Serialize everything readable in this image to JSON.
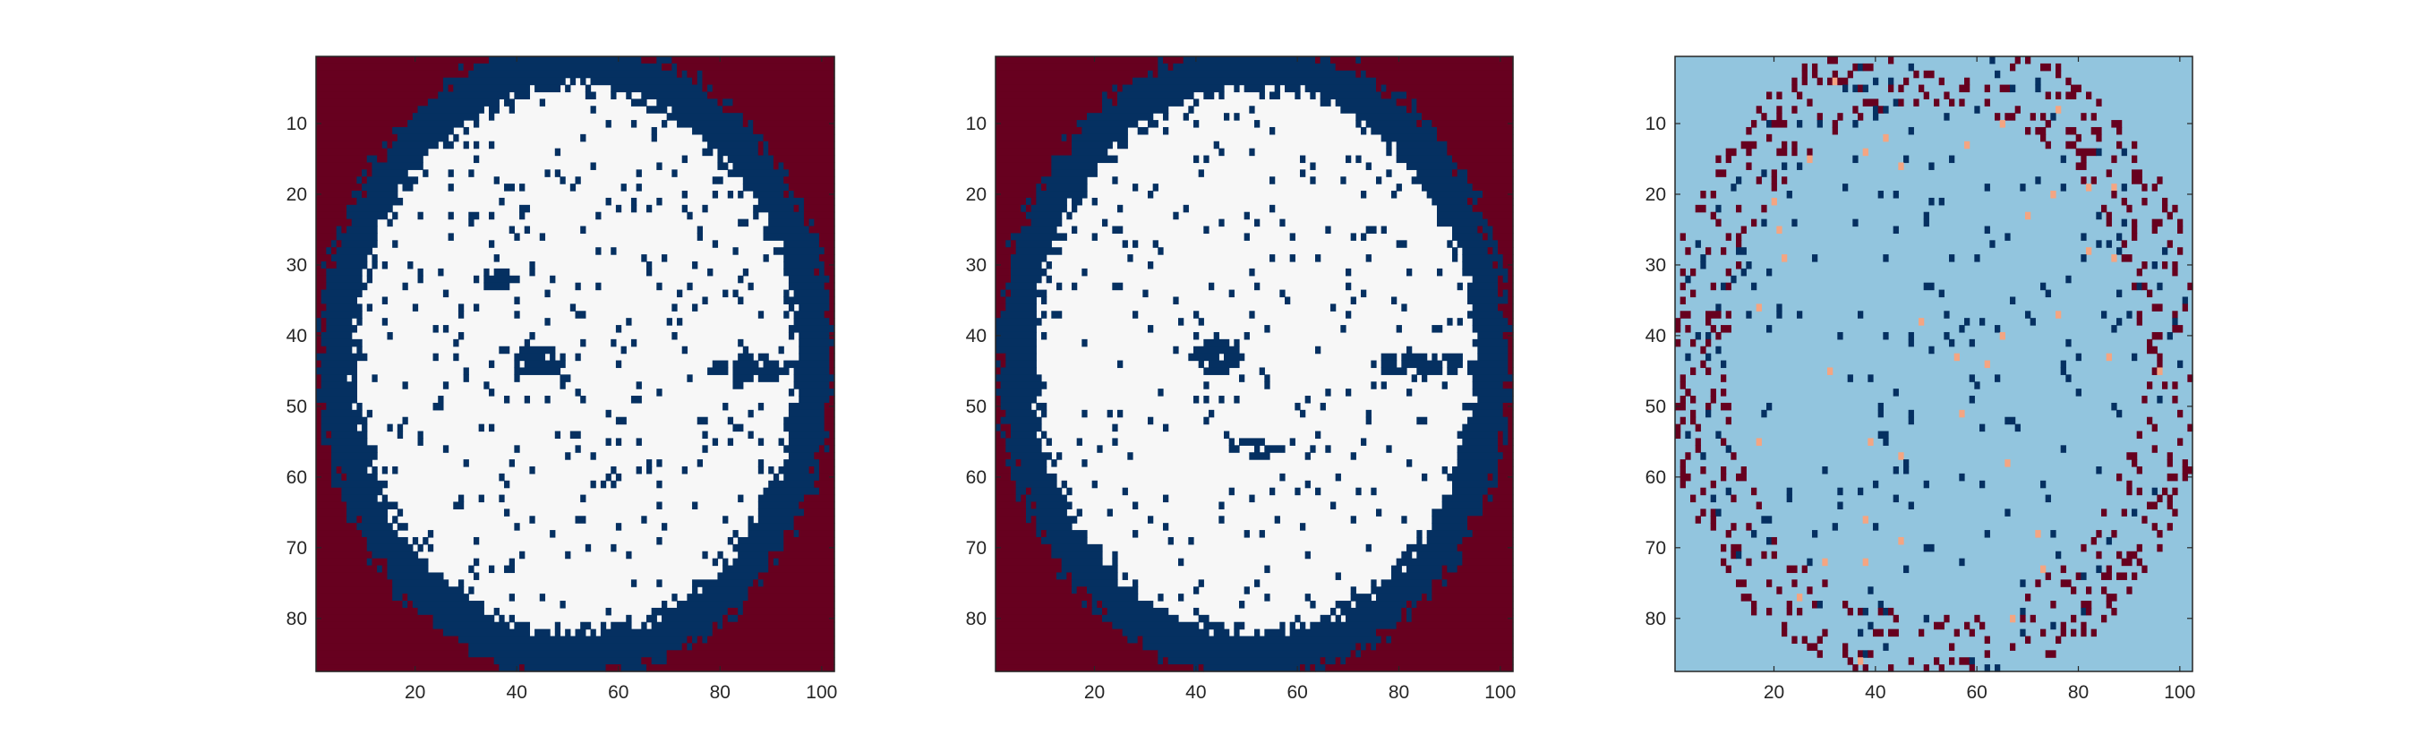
{
  "figure": {
    "background": "#ffffff",
    "axis_color": "#262626"
  },
  "chart_data": [
    {
      "type": "heatmap",
      "title": "",
      "xlabel": "",
      "ylabel": "",
      "grid": false,
      "x_range": [
        1,
        102
      ],
      "y_range": [
        1,
        87
      ],
      "y_reversed": true,
      "xticks": [
        20,
        40,
        60,
        80,
        100
      ],
      "yticks": [
        10,
        20,
        30,
        40,
        50,
        60,
        70,
        80
      ],
      "colors": {
        "outside": "#67001f",
        "boundary": "#053061",
        "interior": "#f7f7f7"
      },
      "shape": {
        "center_x": 51.5,
        "center_y": 43.5,
        "radius_x": 50.5,
        "radius_y": 45,
        "band_width": 6.5
      },
      "blobs": [
        {
          "cx": 44.5,
          "cy": 43.5,
          "rx": 5.5,
          "ry": 2.2,
          "class": "boundary"
        },
        {
          "cx": 87,
          "cy": 44.5,
          "rx": 9,
          "ry": 1.8,
          "class": "boundary"
        },
        {
          "cx": 36,
          "cy": 32,
          "rx": 4,
          "ry": 1.2,
          "class": "boundary"
        }
      ],
      "noise_density": 0.055,
      "seed": 11
    },
    {
      "type": "heatmap",
      "title": "",
      "xlabel": "",
      "ylabel": "",
      "grid": false,
      "x_range": [
        1,
        102
      ],
      "y_range": [
        1,
        87
      ],
      "y_reversed": true,
      "xticks": [
        20,
        40,
        60,
        80,
        100
      ],
      "yticks": [
        10,
        20,
        30,
        40,
        50,
        60,
        70,
        80
      ],
      "colors": {
        "outside": "#67001f",
        "boundary": "#053061",
        "interior": "#f7f7f7"
      },
      "shape": {
        "center_x": 51.5,
        "center_y": 43.5,
        "radius_x": 50.5,
        "radius_y": 45,
        "band_width": 6.5
      },
      "blobs": [
        {
          "cx": 44,
          "cy": 43,
          "rx": 5,
          "ry": 2.2,
          "class": "boundary"
        },
        {
          "cx": 85,
          "cy": 44,
          "rx": 10,
          "ry": 1.8,
          "class": "boundary"
        },
        {
          "cx": 52,
          "cy": 56,
          "rx": 5,
          "ry": 1.2,
          "class": "boundary"
        }
      ],
      "noise_density": 0.04,
      "seed": 23
    },
    {
      "type": "heatmap",
      "title": "",
      "xlabel": "",
      "ylabel": "",
      "grid": false,
      "x_range": [
        1,
        102
      ],
      "y_range": [
        1,
        87
      ],
      "y_reversed": true,
      "xticks": [
        20,
        40,
        60,
        80,
        100
      ],
      "yticks": [
        10,
        20,
        30,
        40,
        50,
        60,
        70,
        80
      ],
      "colors": {
        "background": "#92c5de",
        "negative": "#053061",
        "positive": "#67001f",
        "small_positive": "#f4a582"
      },
      "note_values": "difference map: mostly zero, sparse -1 cells inside, +1 cells along the boundary ring",
      "shape": {
        "center_x": 51.5,
        "center_y": 43.5,
        "radius_x": 50.5,
        "radius_y": 45,
        "band_width": 6.5
      },
      "negative_density": 0.035,
      "ring_positive_density": 0.18,
      "small_positive_density": 0.006,
      "seed": 37
    }
  ]
}
